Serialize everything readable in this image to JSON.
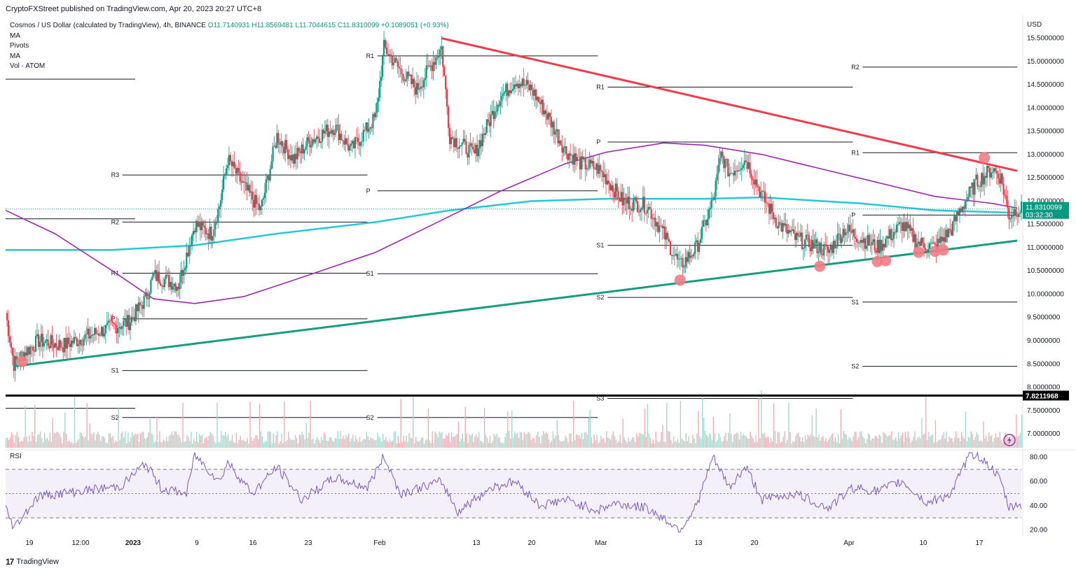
{
  "header": {
    "published": "CryptoFXStreet published on TradingView.com, Apr 20, 2023 20:27 UTC+8"
  },
  "legend": {
    "symbol": "Cosmos / US Dollar (calculated by TradingView), 4h, BINANCE",
    "o": "O11.7140931",
    "h": "H11.8569481",
    "l": "L11.7044615",
    "c": "C11.8310099",
    "chg": "+0.1089051 (+0.93%)",
    "ind1": "MA",
    "ind2": "Pivots",
    "ind3": "MA",
    "ind4": "Vol · ATOM"
  },
  "rsi_label": "RSI",
  "footer": {
    "brand": "TradingView",
    "logo": "17"
  },
  "colors": {
    "up": "#089981",
    "down": "#f23645",
    "trend_down": "#ef3b4a",
    "trend_up": "#149d7f",
    "ma_purple": "#9c27b0",
    "ma_cyan": "#26c6da",
    "rsi": "#7e57c2",
    "marker": "#f37c85"
  },
  "chart_data": [
    {
      "type": "candlestick",
      "title": "Cosmos / US Dollar (calculated by TradingView), 4h, BINANCE",
      "currency": "USD",
      "ylim": [
        6.7,
        15.9
      ],
      "y_ticks": [
        "15.5000000",
        "15.0000000",
        "14.5000000",
        "14.0000000",
        "13.5000000",
        "13.0000000",
        "12.5000000",
        "12.0000000",
        "11.5000000",
        "11.0000000",
        "10.5000000",
        "10.0000000",
        "9.5000000",
        "9.0000000",
        "8.5000000",
        "8.0000000",
        "7.5000000",
        "7.0000000"
      ],
      "x_ticks": [
        "19",
        "12:00",
        "2023",
        "9",
        "16",
        "23",
        "Feb",
        "13",
        "20",
        "Mar",
        "13",
        "20",
        "Apr",
        "10",
        "17"
      ],
      "last_price": "11.8310099",
      "countdown": "03:32:30",
      "horizontal_line": "7.8211968",
      "price_path": [
        {
          "x": "2022-12-18",
          "y": 9.6
        },
        {
          "x": "2022-12-19",
          "y": 8.5
        },
        {
          "x": "2022-12-20",
          "y": 8.7
        },
        {
          "x": "2022-12-22",
          "y": 9.0
        },
        {
          "x": "2022-12-25",
          "y": 8.9
        },
        {
          "x": "2022-12-28",
          "y": 9.1
        },
        {
          "x": "2022-12-31",
          "y": 9.3
        },
        {
          "x": "2023-01-02",
          "y": 9.4
        },
        {
          "x": "2023-01-04",
          "y": 9.9
        },
        {
          "x": "2023-01-05",
          "y": 10.4
        },
        {
          "x": "2023-01-08",
          "y": 10.2
        },
        {
          "x": "2023-01-10",
          "y": 11.5
        },
        {
          "x": "2023-01-12",
          "y": 11.3
        },
        {
          "x": "2023-01-13",
          "y": 11.9
        },
        {
          "x": "2023-01-14",
          "y": 12.9
        },
        {
          "x": "2023-01-16",
          "y": 12.3
        },
        {
          "x": "2023-01-18",
          "y": 11.8
        },
        {
          "x": "2023-01-20",
          "y": 13.4
        },
        {
          "x": "2023-01-22",
          "y": 12.9
        },
        {
          "x": "2023-01-24",
          "y": 13.3
        },
        {
          "x": "2023-01-27",
          "y": 13.6
        },
        {
          "x": "2023-01-29",
          "y": 13.1
        },
        {
          "x": "2023-02-01",
          "y": 13.8
        },
        {
          "x": "2023-02-02",
          "y": 15.3
        },
        {
          "x": "2023-02-04",
          "y": 14.8
        },
        {
          "x": "2023-02-06",
          "y": 14.4
        },
        {
          "x": "2023-02-08",
          "y": 15.0
        },
        {
          "x": "2023-02-09",
          "y": 15.3
        },
        {
          "x": "2023-02-10",
          "y": 13.4
        },
        {
          "x": "2023-02-13",
          "y": 13.0
        },
        {
          "x": "2023-02-16",
          "y": 14.2
        },
        {
          "x": "2023-02-18",
          "y": 14.6
        },
        {
          "x": "2023-02-20",
          "y": 14.4
        },
        {
          "x": "2023-02-22",
          "y": 13.8
        },
        {
          "x": "2023-02-24",
          "y": 13.1
        },
        {
          "x": "2023-02-26",
          "y": 12.8
        },
        {
          "x": "2023-02-28",
          "y": 12.7
        },
        {
          "x": "2023-03-01",
          "y": 12.5
        },
        {
          "x": "2023-03-03",
          "y": 12.0
        },
        {
          "x": "2023-03-06",
          "y": 11.9
        },
        {
          "x": "2023-03-08",
          "y": 11.3
        },
        {
          "x": "2023-03-10",
          "y": 10.6
        },
        {
          "x": "2023-03-12",
          "y": 11.0
        },
        {
          "x": "2023-03-14",
          "y": 12.0
        },
        {
          "x": "2023-03-15",
          "y": 13.0
        },
        {
          "x": "2023-03-16",
          "y": 12.6
        },
        {
          "x": "2023-03-18",
          "y": 12.9
        },
        {
          "x": "2023-03-20",
          "y": 12.1
        },
        {
          "x": "2023-03-22",
          "y": 11.5
        },
        {
          "x": "2023-03-24",
          "y": 11.2
        },
        {
          "x": "2023-03-27",
          "y": 11.0
        },
        {
          "x": "2023-03-28",
          "y": 10.9
        },
        {
          "x": "2023-03-30",
          "y": 11.4
        },
        {
          "x": "2023-04-01",
          "y": 11.2
        },
        {
          "x": "2023-04-03",
          "y": 11.0
        },
        {
          "x": "2023-04-06",
          "y": 11.5
        },
        {
          "x": "2023-04-08",
          "y": 11.1
        },
        {
          "x": "2023-04-10",
          "y": 11.0
        },
        {
          "x": "2023-04-12",
          "y": 11.4
        },
        {
          "x": "2023-04-13",
          "y": 11.8
        },
        {
          "x": "2023-04-15",
          "y": 12.4
        },
        {
          "x": "2023-04-17",
          "y": 12.7
        },
        {
          "x": "2023-04-18",
          "y": 12.5
        },
        {
          "x": "2023-04-19",
          "y": 11.7
        },
        {
          "x": "2023-04-20",
          "y": 11.83
        }
      ],
      "ma_purple": [
        {
          "x": "2022-12-18",
          "y": 11.8
        },
        {
          "x": "2022-12-24",
          "y": 11.3
        },
        {
          "x": "2022-12-31",
          "y": 10.5
        },
        {
          "x": "2023-01-05",
          "y": 9.9
        },
        {
          "x": "2023-01-10",
          "y": 9.8
        },
        {
          "x": "2023-01-16",
          "y": 9.95
        },
        {
          "x": "2023-01-22",
          "y": 10.3
        },
        {
          "x": "2023-02-01",
          "y": 10.9
        },
        {
          "x": "2023-02-08",
          "y": 11.5
        },
        {
          "x": "2023-02-16",
          "y": 12.2
        },
        {
          "x": "2023-02-24",
          "y": 12.8
        },
        {
          "x": "2023-03-01",
          "y": 13.05
        },
        {
          "x": "2023-03-08",
          "y": 13.25
        },
        {
          "x": "2023-03-13",
          "y": 13.2
        },
        {
          "x": "2023-03-20",
          "y": 13.0
        },
        {
          "x": "2023-03-27",
          "y": 12.7
        },
        {
          "x": "2023-04-03",
          "y": 12.4
        },
        {
          "x": "2023-04-10",
          "y": 12.1
        },
        {
          "x": "2023-04-17",
          "y": 11.95
        },
        {
          "x": "2023-04-20",
          "y": 11.85
        }
      ],
      "ma_cyan": [
        {
          "x": "2022-12-18",
          "y": 10.95
        },
        {
          "x": "2022-12-31",
          "y": 10.95
        },
        {
          "x": "2023-01-10",
          "y": 11.05
        },
        {
          "x": "2023-01-20",
          "y": 11.3
        },
        {
          "x": "2023-02-01",
          "y": 11.55
        },
        {
          "x": "2023-02-10",
          "y": 11.8
        },
        {
          "x": "2023-02-20",
          "y": 12.0
        },
        {
          "x": "2023-03-01",
          "y": 12.05
        },
        {
          "x": "2023-03-13",
          "y": 12.05
        },
        {
          "x": "2023-03-20",
          "y": 12.08
        },
        {
          "x": "2023-04-01",
          "y": 11.95
        },
        {
          "x": "2023-04-10",
          "y": 11.8
        },
        {
          "x": "2023-04-20",
          "y": 11.75
        }
      ],
      "trendlines": [
        {
          "from": {
            "x": "2022-12-19",
            "y": 8.45
          },
          "to": {
            "x": "2023-04-20",
            "y": 11.15
          }
        },
        {
          "from": {
            "x": "2023-02-09",
            "y": 15.5
          },
          "to": {
            "x": "2023-04-20",
            "y": 12.65
          }
        }
      ],
      "pivot_markers": [
        {
          "x": "2022-12-20",
          "y": 8.55
        },
        {
          "x": "2023-03-10",
          "y": 10.3
        },
        {
          "x": "2023-03-27",
          "y": 10.6
        },
        {
          "x": "2023-04-03",
          "y": 10.7
        },
        {
          "x": "2023-04-04",
          "y": 10.72
        },
        {
          "x": "2023-04-08",
          "y": 10.9
        },
        {
          "x": "2023-04-10",
          "y": 10.92
        },
        {
          "x": "2023-04-11",
          "y": 10.95
        },
        {
          "x": "2023-04-16",
          "y": 12.93
        }
      ],
      "pivot_levels": [
        {
          "label": "R1",
          "y": 15.12,
          "x0": "2023-01-31",
          "x1": "2023-02-28"
        },
        {
          "label": "P",
          "y": 12.22,
          "x0": "2023-01-31",
          "x1": "2023-02-28"
        },
        {
          "label": "S1",
          "y": 10.44,
          "x0": "2023-01-31",
          "x1": "2023-02-28"
        },
        {
          "label": "S2",
          "y": 7.35,
          "x0": "2023-01-31",
          "x1": "2023-02-28"
        },
        {
          "label": "R3",
          "y": 12.56,
          "x0": "2022-12-31",
          "x1": "2023-01-31"
        },
        {
          "label": "R2",
          "y": 11.55,
          "x0": "2022-12-31",
          "x1": "2023-01-31"
        },
        {
          "label": "R1",
          "y": 10.45,
          "x0": "2022-12-31",
          "x1": "2023-01-31"
        },
        {
          "label": "P",
          "y": 9.47,
          "x0": "2022-12-31",
          "x1": "2023-01-31"
        },
        {
          "label": "S1",
          "y": 8.36,
          "x0": "2022-12-31",
          "x1": "2023-01-31"
        },
        {
          "label": "S2",
          "y": 7.35,
          "x0": "2022-12-31",
          "x1": "2023-01-31"
        },
        {
          "label": "R1",
          "y": 14.45,
          "x0": "2023-02-28",
          "x1": "2023-03-31"
        },
        {
          "label": "P",
          "y": 13.27,
          "x0": "2023-02-28",
          "x1": "2023-03-31"
        },
        {
          "label": "S1",
          "y": 11.05,
          "x0": "2023-02-28",
          "x1": "2023-03-31"
        },
        {
          "label": "S2",
          "y": 9.93,
          "x0": "2023-02-28",
          "x1": "2023-03-31"
        },
        {
          "label": "S3",
          "y": 7.76,
          "x0": "2023-02-28",
          "x1": "2023-03-31"
        },
        {
          "label": "R2",
          "y": 14.88,
          "x0": "2023-03-31",
          "x1": "2023-04-20"
        },
        {
          "label": "R1",
          "y": 13.04,
          "x0": "2023-03-31",
          "x1": "2023-04-20"
        },
        {
          "label": "P",
          "y": 11.7,
          "x0": "2023-03-31",
          "x1": "2023-04-20"
        },
        {
          "label": "S1",
          "y": 9.83,
          "x0": "2023-03-31",
          "x1": "2023-04-20"
        },
        {
          "label": "S2",
          "y": 8.45,
          "x0": "2023-03-31",
          "x1": "2023-04-20"
        }
      ]
    },
    {
      "type": "line",
      "title": "RSI",
      "ylim": [
        15,
        85
      ],
      "y_ticks": [
        80,
        60,
        40,
        20
      ],
      "bands": [
        30,
        50,
        70
      ],
      "values": [
        {
          "x": "2022-12-18",
          "y": 38
        },
        {
          "x": "2022-12-19",
          "y": 22
        },
        {
          "x": "2022-12-22",
          "y": 48
        },
        {
          "x": "2022-12-27",
          "y": 52
        },
        {
          "x": "2023-01-01",
          "y": 56
        },
        {
          "x": "2023-01-04",
          "y": 75
        },
        {
          "x": "2023-01-06",
          "y": 54
        },
        {
          "x": "2023-01-09",
          "y": 50
        },
        {
          "x": "2023-01-10",
          "y": 82
        },
        {
          "x": "2023-01-13",
          "y": 60
        },
        {
          "x": "2023-01-14",
          "y": 76
        },
        {
          "x": "2023-01-17",
          "y": 50
        },
        {
          "x": "2023-01-20",
          "y": 72
        },
        {
          "x": "2023-01-23",
          "y": 45
        },
        {
          "x": "2023-01-27",
          "y": 63
        },
        {
          "x": "2023-01-31",
          "y": 55
        },
        {
          "x": "2023-02-02",
          "y": 81
        },
        {
          "x": "2023-02-04",
          "y": 50
        },
        {
          "x": "2023-02-09",
          "y": 60
        },
        {
          "x": "2023-02-11",
          "y": 35
        },
        {
          "x": "2023-02-15",
          "y": 55
        },
        {
          "x": "2023-02-18",
          "y": 60
        },
        {
          "x": "2023-02-21",
          "y": 40
        },
        {
          "x": "2023-02-24",
          "y": 45
        },
        {
          "x": "2023-02-28",
          "y": 36
        },
        {
          "x": "2023-03-02",
          "y": 42
        },
        {
          "x": "2023-03-06",
          "y": 38
        },
        {
          "x": "2023-03-09",
          "y": 25
        },
        {
          "x": "2023-03-10",
          "y": 20
        },
        {
          "x": "2023-03-12",
          "y": 40
        },
        {
          "x": "2023-03-14",
          "y": 80
        },
        {
          "x": "2023-03-16",
          "y": 55
        },
        {
          "x": "2023-03-18",
          "y": 72
        },
        {
          "x": "2023-03-20",
          "y": 45
        },
        {
          "x": "2023-03-24",
          "y": 50
        },
        {
          "x": "2023-03-28",
          "y": 38
        },
        {
          "x": "2023-03-31",
          "y": 55
        },
        {
          "x": "2023-04-03",
          "y": 52
        },
        {
          "x": "2023-04-06",
          "y": 60
        },
        {
          "x": "2023-04-09",
          "y": 42
        },
        {
          "x": "2023-04-12",
          "y": 50
        },
        {
          "x": "2023-04-14",
          "y": 80
        },
        {
          "x": "2023-04-15",
          "y": 83
        },
        {
          "x": "2023-04-17",
          "y": 70
        },
        {
          "x": "2023-04-18",
          "y": 60
        },
        {
          "x": "2023-04-19",
          "y": 38
        },
        {
          "x": "2023-04-20",
          "y": 41
        }
      ]
    }
  ]
}
